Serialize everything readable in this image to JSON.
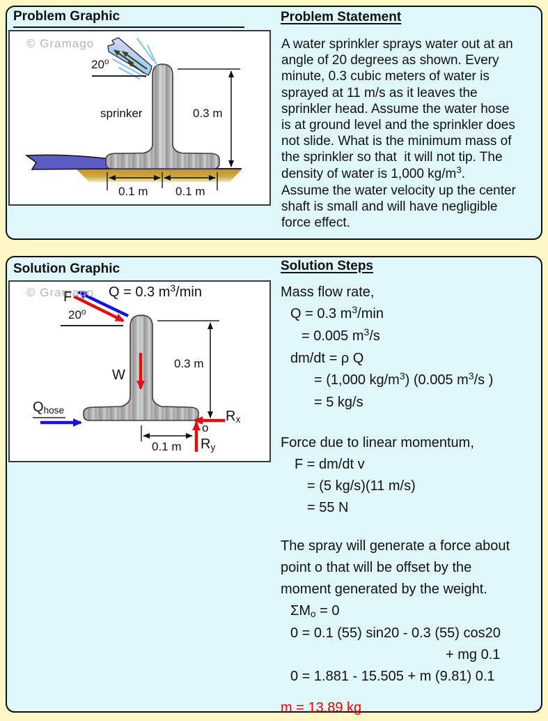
{
  "colors": {
    "page_bg": "#FFF8C6",
    "panel_bg": "#DFF7FA",
    "panel_border": "#101010",
    "arrow_red": "#E01010",
    "arrow_blue": "#1414DC",
    "answer_red": "#EE0000",
    "watermark_gray": "#B4B4B4",
    "ground_gold": "#C39326",
    "hose_purple": "#5C5CC4",
    "metal_gray": "#ABABAB"
  },
  "problem": {
    "graphic_title": "Problem Graphic",
    "statement_title": "Problem Statement",
    "statement_lines": [
      "A water sprinkler sprays water out at an",
      "angle of 20 degrees as shown. Every",
      "minute, 0.3 cubic meters of water is",
      "sprayed at 11 m/s as it leaves the",
      "sprinkler head. Assume the water hose",
      "is at ground level and the sprinkler does",
      "not slide. What is the minimum mass of",
      "the sprinkler so that  it will not tip. The",
      {
        "seg": [
          {
            "t": "density of water is 1,000 kg/m"
          },
          {
            "t": "3",
            "sup": true
          },
          {
            "t": "."
          }
        ]
      },
      "Assume the water velocity up the center",
      "shaft is small and will have negligible",
      "force effect."
    ],
    "graphic": {
      "watermark": "© Gramago",
      "angle_label": [
        {
          "t": "20"
        },
        {
          "t": "o",
          "sup": true
        }
      ],
      "body_label": "sprinker",
      "height_label": "0.3 m",
      "dim_left_label": "0.1 m",
      "dim_right_label": "0.1 m"
    }
  },
  "solution": {
    "graphic_title": "Solution Graphic",
    "steps_title": "Solution Steps",
    "graphic": {
      "watermark": "© Gramago",
      "force_label": "F",
      "flow_label": [
        {
          "t": "Q = 0.3 m"
        },
        {
          "t": "3",
          "sup": true
        },
        {
          "t": "/min"
        }
      ],
      "angle_label": [
        {
          "t": "20"
        },
        {
          "t": "o",
          "sup": true
        }
      ],
      "weight_label": "W",
      "height_label": "0.3 m",
      "hose_label": [
        {
          "t": "Q"
        },
        {
          "t": "hose",
          "sub": true
        }
      ],
      "rx_label": [
        {
          "t": "R"
        },
        {
          "t": "x",
          "sub": true
        }
      ],
      "ry_label": [
        {
          "t": "R"
        },
        {
          "t": "y",
          "sub": true
        }
      ],
      "origin_label": "o",
      "dim_label": "0.1 m"
    },
    "steps_lines": [
      {
        "ind": 0,
        "seg": [
          {
            "t": "Mass flow rate,"
          }
        ]
      },
      {
        "ind": 14,
        "seg": [
          {
            "t": "Q = 0.3 m"
          },
          {
            "t": "3",
            "sup": true
          },
          {
            "t": "/min"
          }
        ]
      },
      {
        "ind": 30,
        "seg": [
          {
            "t": "= 0.005 m"
          },
          {
            "t": "3",
            "sup": true
          },
          {
            "t": "/s"
          }
        ]
      },
      {
        "ind": 14,
        "seg": [
          {
            "t": "dm/dt = ρ Q"
          }
        ]
      },
      {
        "ind": 48,
        "seg": [
          {
            "t": "= (1,000 kg/m"
          },
          {
            "t": "3",
            "sup": true
          },
          {
            "t": ") (0.005 m"
          },
          {
            "t": "3",
            "sup": true
          },
          {
            "t": "/s )"
          }
        ]
      },
      {
        "ind": 48,
        "seg": [
          {
            "t": "= 5 kg/s"
          }
        ]
      },
      {
        "spacer": 27
      },
      {
        "ind": 0,
        "seg": [
          {
            "t": "Force due to linear momentum,"
          }
        ]
      },
      {
        "ind": 20,
        "seg": [
          {
            "t": "F = dm/dt v"
          }
        ]
      },
      {
        "ind": 38,
        "seg": [
          {
            "t": "= (5 kg/s)(11 m/s)"
          }
        ]
      },
      {
        "ind": 38,
        "seg": [
          {
            "t": "= 55 N"
          }
        ]
      },
      {
        "spacer": 24
      },
      {
        "ind": 0,
        "seg": [
          {
            "t": "The spray will generate a force about"
          }
        ]
      },
      {
        "ind": 0,
        "seg": [
          {
            "t": "point o that will be offset by the"
          }
        ]
      },
      {
        "ind": 0,
        "seg": [
          {
            "t": "moment generated by the weight."
          }
        ]
      },
      {
        "ind": 14,
        "seg": [
          {
            "t": "ΣM"
          },
          {
            "t": "o",
            "sub": true
          },
          {
            "t": " = 0"
          }
        ]
      },
      {
        "ind": 14,
        "seg": [
          {
            "t": "0 = 0.1 (55) sin20 - 0.3 (55) cos20"
          }
        ]
      },
      {
        "ind": 237,
        "seg": [
          {
            "t": "+ mg 0.1"
          }
        ]
      },
      {
        "ind": 14,
        "seg": [
          {
            "t": "0 = 1.881 - 15.505 + m (9.81) 0.1"
          }
        ]
      },
      {
        "spacer": 14
      },
      {
        "ind": 0,
        "red": true,
        "seg": [
          {
            "t": "m = 13.89 kg"
          }
        ]
      }
    ]
  }
}
